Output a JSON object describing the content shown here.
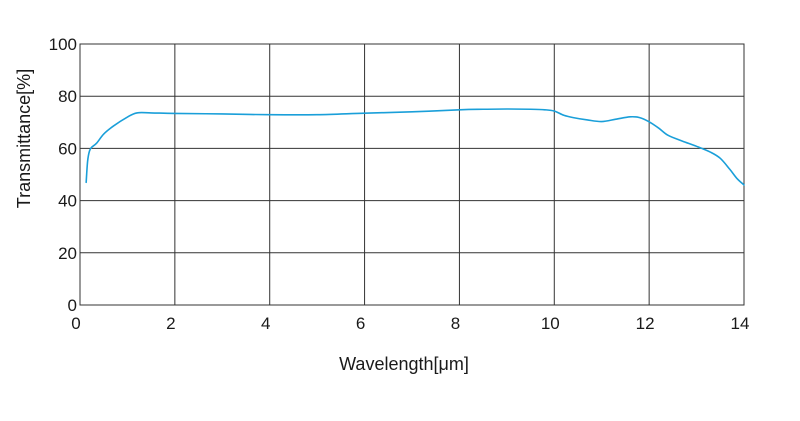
{
  "chart_data": {
    "type": "line",
    "title": "",
    "xlabel": "Wavelength[μm]",
    "ylabel": "Transmittance[%]",
    "xlim": [
      0,
      14
    ],
    "ylim": [
      0,
      100
    ],
    "x_ticks": [
      0,
      2,
      4,
      6,
      8,
      10,
      12,
      14
    ],
    "y_ticks": [
      0,
      20,
      40,
      60,
      80,
      100
    ],
    "x_tick_labels": [
      "0",
      "2",
      "4",
      "6",
      "8",
      "10",
      "12",
      "14"
    ],
    "y_tick_labels": [
      "0",
      "20",
      "40",
      "60",
      "80",
      "100"
    ],
    "grid": true,
    "legend": "none",
    "colors": {
      "series": "#1a9fd9",
      "grid": "#333333"
    },
    "series": [
      {
        "x": [
          0.13,
          0.16,
          0.2,
          0.25,
          0.35,
          0.5,
          0.7,
          1.0,
          1.2,
          1.5,
          2,
          3,
          4,
          5,
          6,
          7,
          8,
          8.5,
          9,
          9.5,
          9.8,
          10.0,
          10.2,
          10.4,
          10.7,
          11.0,
          11.3,
          11.6,
          11.8,
          12.0,
          12.2,
          12.4,
          12.7,
          13.0,
          13.3,
          13.5,
          13.7,
          13.85,
          14.0
        ],
        "y": [
          47,
          55,
          59,
          60.5,
          62,
          65.5,
          68.5,
          72,
          73.6,
          73.6,
          73.4,
          73.2,
          72.9,
          72.9,
          73.5,
          74,
          74.8,
          75,
          75.1,
          75,
          74.8,
          74.3,
          72.7,
          71.8,
          70.9,
          70.3,
          71.2,
          72.1,
          71.8,
          70.2,
          67.8,
          65,
          62.8,
          60.8,
          58.5,
          56.2,
          52,
          48.5,
          46
        ]
      }
    ]
  }
}
